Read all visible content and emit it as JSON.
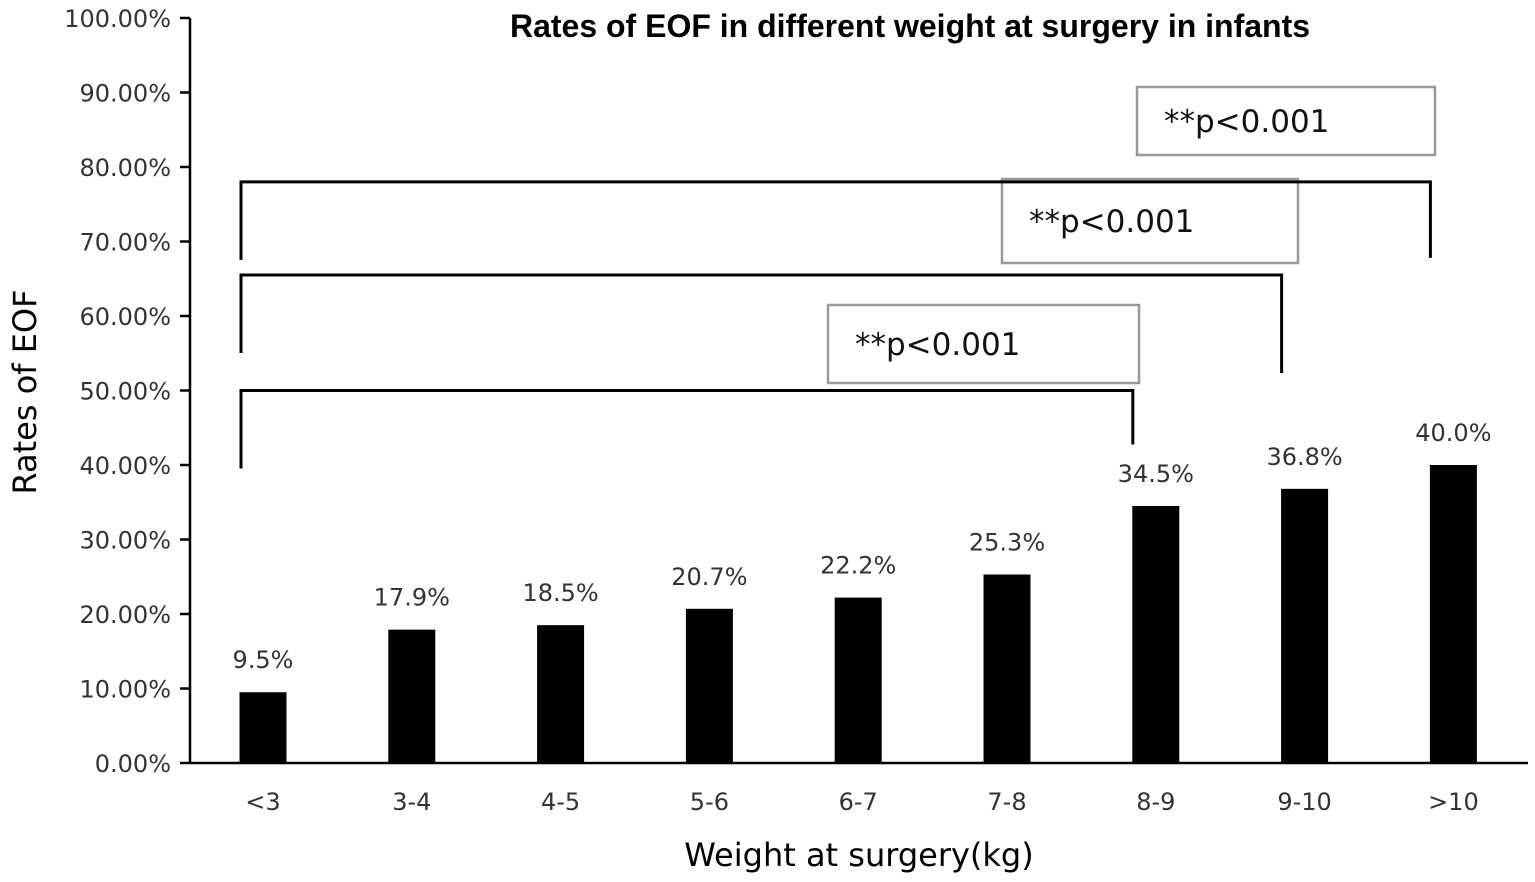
{
  "chart_data": {
    "type": "bar",
    "title": "Rates of EOF in different weight at surgery in infants",
    "xlabel": "Weight at surgery(kg)",
    "ylabel": "Rates of EOF",
    "categories": [
      "<3",
      "3-4",
      "4-5",
      "5-6",
      "6-7",
      "7-8",
      "8-9",
      "9-10",
      ">10"
    ],
    "values": [
      9.5,
      17.9,
      18.5,
      20.7,
      22.2,
      25.3,
      34.5,
      36.8,
      40.0
    ],
    "data_labels": [
      "9.5%",
      "17.9%",
      "18.5%",
      "20.7%",
      "22.2%",
      "25.3%",
      "34.5%",
      "36.8%",
      "40.0%"
    ],
    "ylim": [
      0,
      100
    ],
    "yticks": [
      0,
      10,
      20,
      30,
      40,
      50,
      60,
      70,
      80,
      90,
      100
    ],
    "ytick_labels": [
      "0.00%",
      "10.00%",
      "20.00%",
      "30.00%",
      "40.00%",
      "50.00%",
      "60.00%",
      "70.00%",
      "80.00%",
      "90.00%",
      "100.00%"
    ],
    "grid": false,
    "bar_color": "#000000",
    "comparisons": [
      {
        "from": "<3",
        "to": "8-9",
        "level": 50,
        "label": "**p<0.001"
      },
      {
        "from": "<3",
        "to": "9-10",
        "level": 65.5,
        "label": "**p<0.001"
      },
      {
        "from": "<3",
        "to": ">10",
        "level": 78,
        "label": "**p<0.001"
      }
    ]
  }
}
